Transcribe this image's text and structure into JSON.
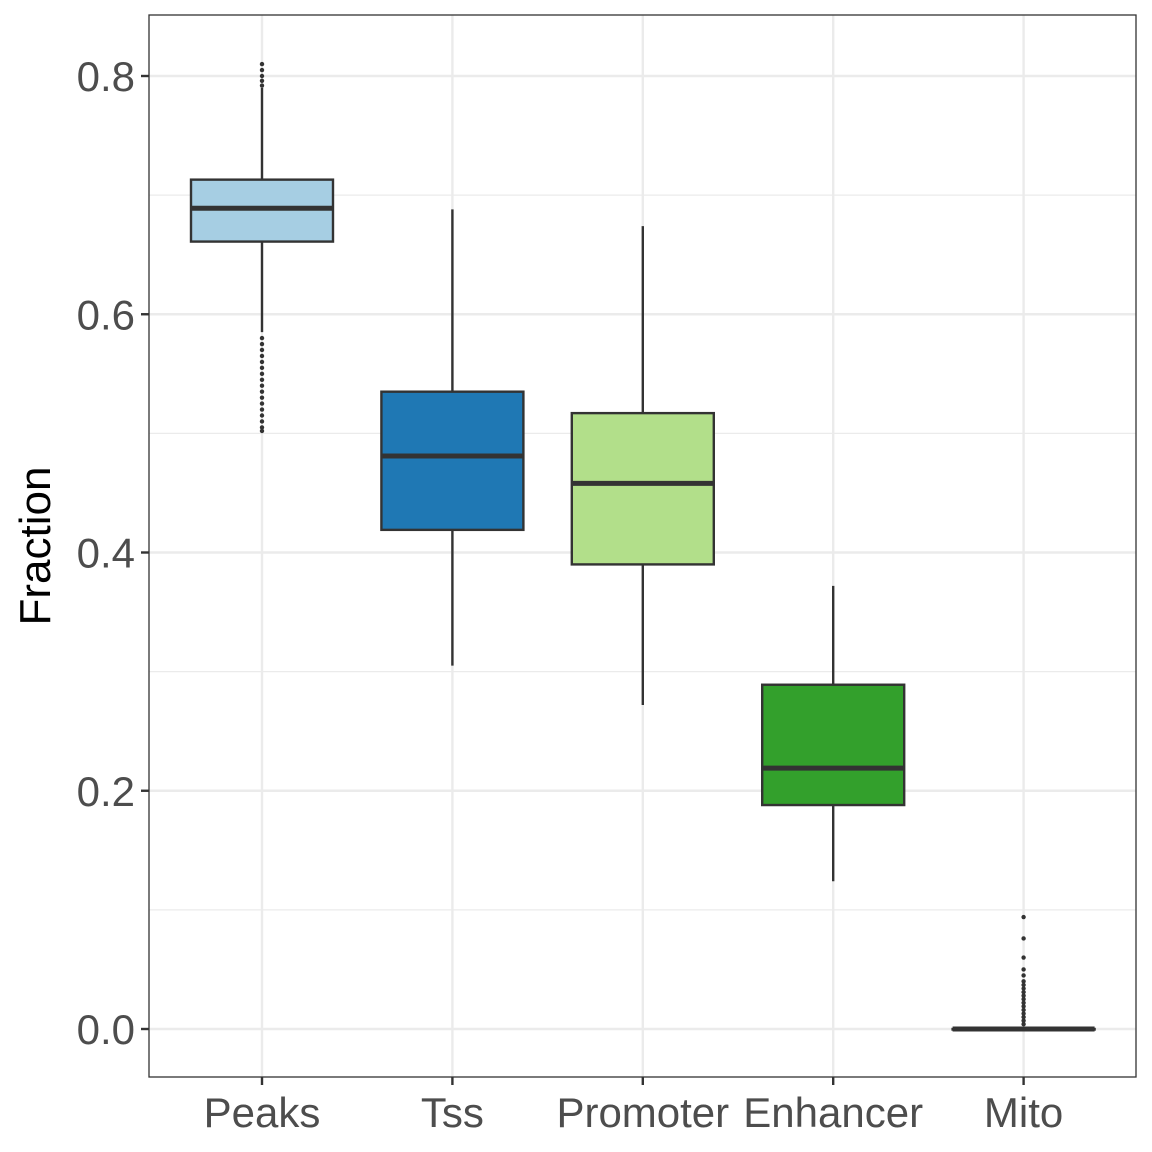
{
  "chart_data": {
    "type": "boxplot",
    "title": "",
    "xlabel": "",
    "ylabel": "Fraction",
    "ylim": [
      -0.04,
      0.85
    ],
    "yticks": [
      0.0,
      0.2,
      0.4,
      0.6,
      0.8
    ],
    "ytick_labels": [
      "0.0",
      "0.2",
      "0.4",
      "0.6",
      "0.8"
    ],
    "y_minor_grid": [
      0.1,
      0.3,
      0.5,
      0.7
    ],
    "grid": true,
    "legend": "none",
    "categories": [
      "Peaks",
      "Tss",
      "Promoter",
      "Enhancer",
      "Mito"
    ],
    "boxes": [
      {
        "category": "Peaks",
        "whisker_low": 0.585,
        "q1": 0.661,
        "median": 0.689,
        "q3": 0.713,
        "whisker_high": 0.79,
        "color": "#a6cee3",
        "outliers": [
          0.81,
          0.805,
          0.8,
          0.796,
          0.792,
          0.58,
          0.575,
          0.57,
          0.565,
          0.56,
          0.555,
          0.55,
          0.545,
          0.54,
          0.535,
          0.53,
          0.525,
          0.52,
          0.515,
          0.51,
          0.505,
          0.502
        ]
      },
      {
        "category": "Tss",
        "whisker_low": 0.305,
        "q1": 0.419,
        "median": 0.481,
        "q3": 0.535,
        "whisker_high": 0.688,
        "color": "#1f78b4",
        "outliers": []
      },
      {
        "category": "Promoter",
        "whisker_low": 0.272,
        "q1": 0.39,
        "median": 0.458,
        "q3": 0.517,
        "whisker_high": 0.674,
        "color": "#b2df8a",
        "outliers": []
      },
      {
        "category": "Enhancer",
        "whisker_low": 0.124,
        "q1": 0.188,
        "median": 0.219,
        "q3": 0.289,
        "whisker_high": 0.372,
        "color": "#33a02c",
        "outliers": []
      },
      {
        "category": "Mito",
        "whisker_low": 0.0,
        "q1": 0.0,
        "median": 0.0,
        "q3": 0.0,
        "whisker_high": 0.0,
        "color": "#33a02c",
        "outliers": [
          0.094,
          0.076,
          0.06,
          0.05,
          0.045,
          0.04,
          0.037,
          0.034,
          0.031,
          0.028,
          0.025,
          0.022,
          0.019,
          0.016,
          0.013,
          0.01,
          0.007,
          0.004
        ]
      }
    ]
  }
}
